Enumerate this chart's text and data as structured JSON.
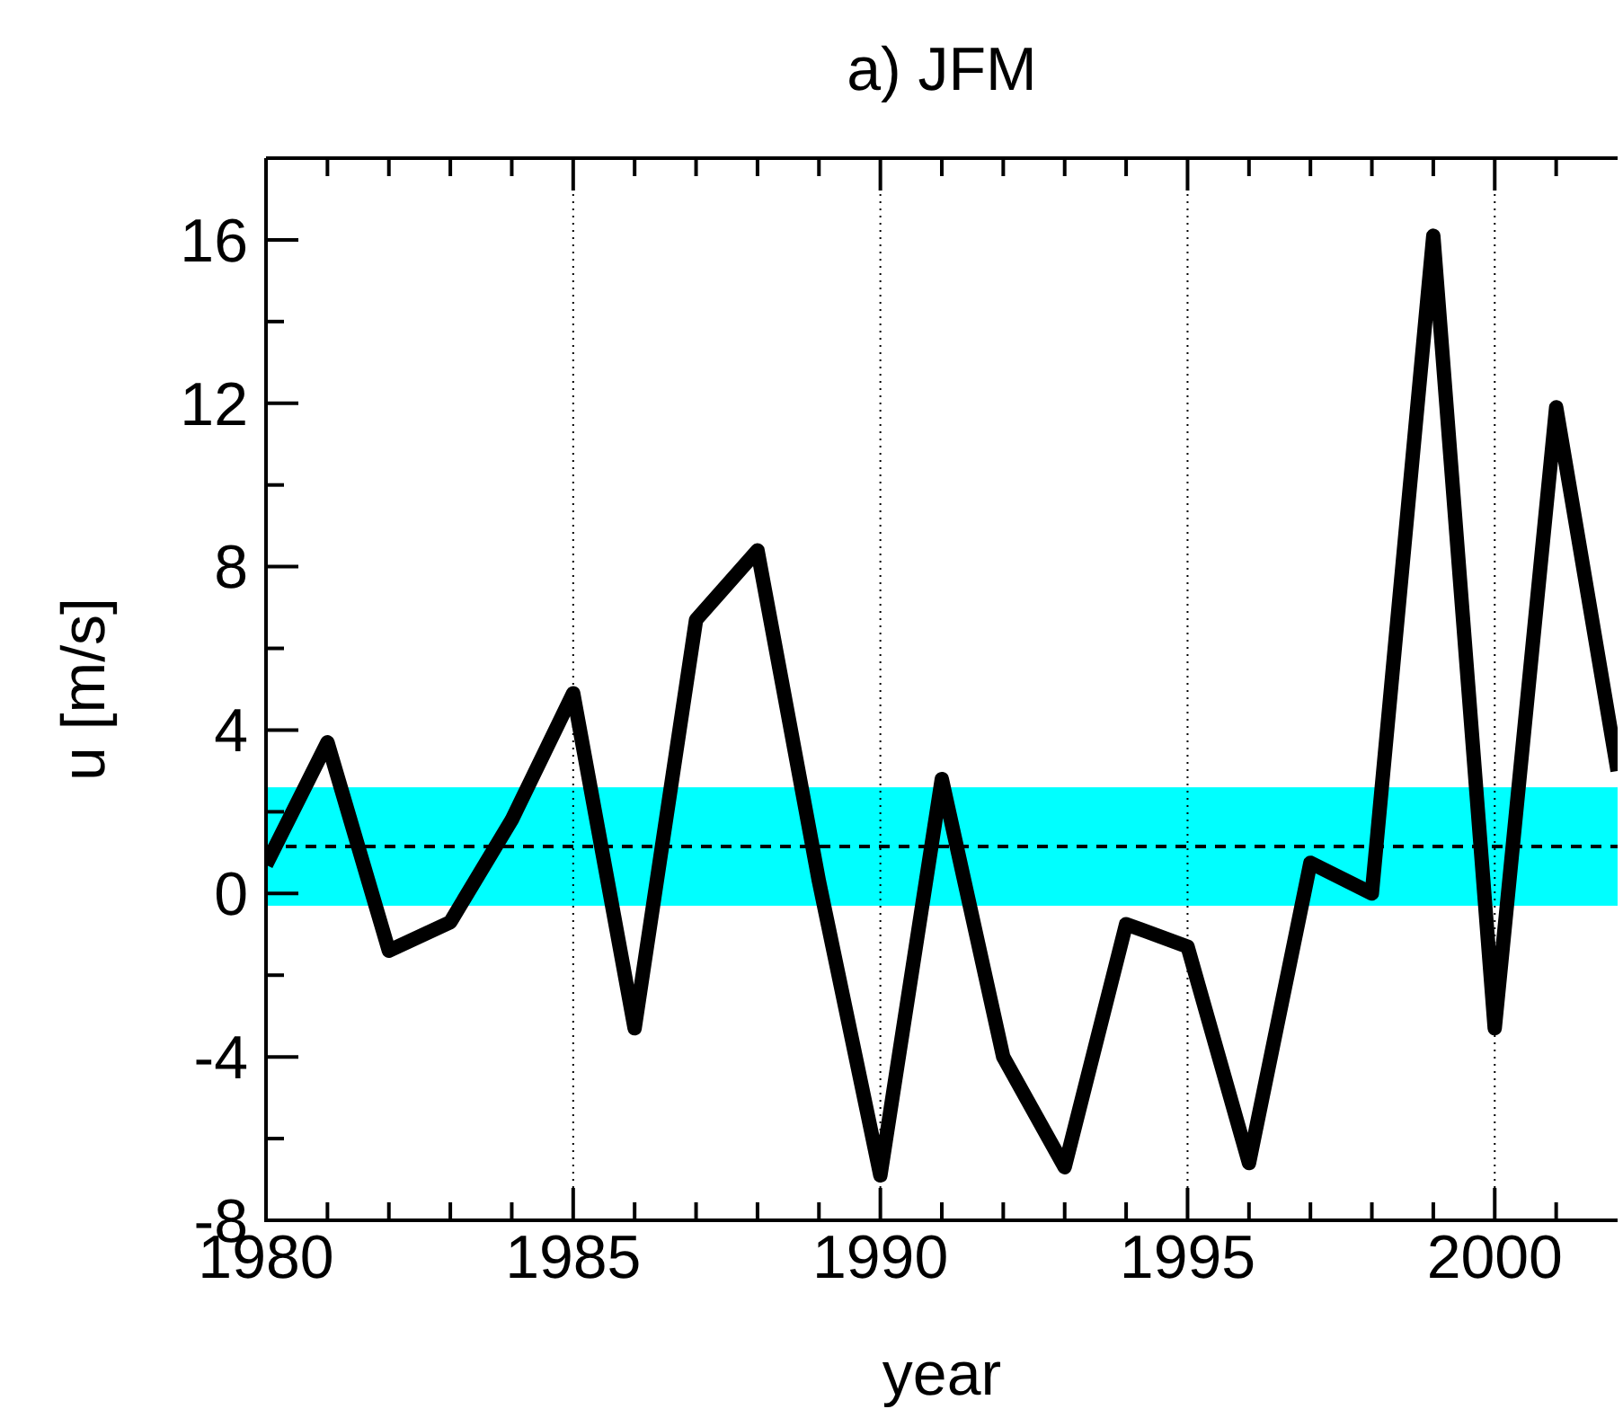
{
  "chart_data": {
    "type": "line",
    "title": "a) JFM",
    "xlabel": "year",
    "ylabel": "u [m/s]",
    "x": [
      1980,
      1981,
      1982,
      1983,
      1984,
      1985,
      1986,
      1987,
      1988,
      1989,
      1990,
      1991,
      1992,
      1993,
      1994,
      1995,
      1996,
      1997,
      1998,
      1999,
      2000,
      2001,
      2002
    ],
    "series": [
      {
        "color": "#000000",
        "values": [
          0.7,
          3.7,
          -1.4,
          -0.7,
          1.8,
          4.9,
          -3.3,
          6.7,
          8.4,
          0.3,
          -6.9,
          2.8,
          -4.0,
          -6.7,
          -0.75,
          -1.3,
          -6.6,
          0.75,
          0,
          16.1,
          -3.3,
          11.9,
          3
        ]
      }
    ],
    "xlim": [
      1980,
      2002
    ],
    "ylim": [
      -8,
      18
    ],
    "xticks": [
      1980,
      {
        "value": 1981,
        "label": null
      },
      {
        "value": 1982,
        "label": null
      },
      {
        "value": 1983,
        "label": null
      },
      {
        "value": 1984,
        "label": null
      },
      1985,
      {
        "value": 1986,
        "label": null
      },
      {
        "value": 1987,
        "label": null
      },
      {
        "value": 1988,
        "label": null
      },
      {
        "value": 1989,
        "label": null
      },
      1990,
      {
        "value": 1991,
        "label": null
      },
      {
        "value": 1992,
        "label": null
      },
      {
        "value": 1993,
        "label": null
      },
      {
        "value": 1994,
        "label": null
      },
      1995,
      {
        "value": 1996,
        "label": null
      },
      {
        "value": 1997,
        "label": null
      },
      {
        "value": 1998,
        "label": null
      },
      {
        "value": 1999,
        "label": null
      },
      2000,
      {
        "value": 2001,
        "label": null
      }
    ],
    "yticks": [
      -8,
      {
        "value": -6,
        "label": null
      },
      -4,
      {
        "value": -2,
        "label": null
      },
      0,
      {
        "value": 2,
        "label": null
      },
      4,
      {
        "value": 6,
        "label": null
      },
      8,
      {
        "value": 10,
        "label": null
      },
      12,
      {
        "value": 14,
        "label": null
      },
      16
    ],
    "grid": "x",
    "marker": "none",
    "line_style": "solid",
    "bands": [
      {
        "axis": "y",
        "from": -0.3,
        "to": 2.6,
        "color": "#00ffff"
      }
    ],
    "ref_lines": [
      {
        "axis": "y",
        "value": 1.15,
        "color": "#000000",
        "line_style": "dashed"
      }
    ]
  }
}
